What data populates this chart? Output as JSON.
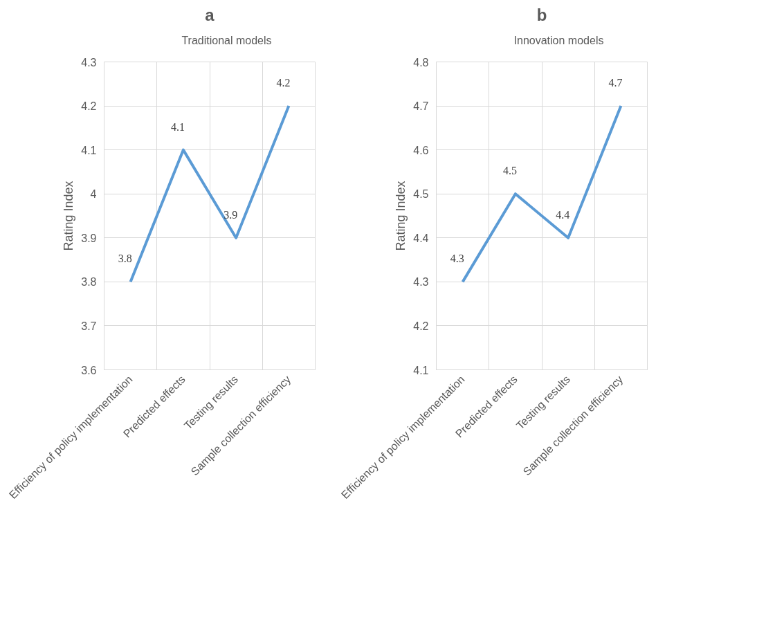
{
  "chart_data": [
    {
      "type": "line",
      "title": "a",
      "ylabel": "Rating Index",
      "categories": [
        "Efficiency of policy implementation",
        "Predicted effects",
        "Testing results",
        "Sample collection efficiency"
      ],
      "series": [
        {
          "name": "Traditional models",
          "color": "#5b9bd5",
          "values": [
            3.8,
            4.1,
            3.9,
            4.2
          ]
        }
      ],
      "ylim": [
        3.6,
        4.3
      ],
      "yticks": [
        3.6,
        3.7,
        3.8,
        3.9,
        4,
        4.1,
        4.2,
        4.3
      ],
      "grid": true,
      "legend": "top",
      "data_labels": true,
      "marker": "none",
      "line_style": "solid"
    },
    {
      "type": "line",
      "title": "b",
      "ylabel": "Rating Index",
      "categories": [
        "Efficiency of policy implementation",
        "Predicted effects",
        "Testing results",
        "Sample collection efficiency"
      ],
      "series": [
        {
          "name": "Innovation models",
          "color": "#5b9bd5",
          "values": [
            4.3,
            4.5,
            4.4,
            4.7
          ]
        }
      ],
      "ylim": [
        4.1,
        4.8
      ],
      "yticks": [
        4.1,
        4.2,
        4.3,
        4.4,
        4.5,
        4.6,
        4.7,
        4.8
      ],
      "grid": true,
      "legend": "top",
      "data_labels": true,
      "marker": "none",
      "line_style": "solid"
    }
  ]
}
